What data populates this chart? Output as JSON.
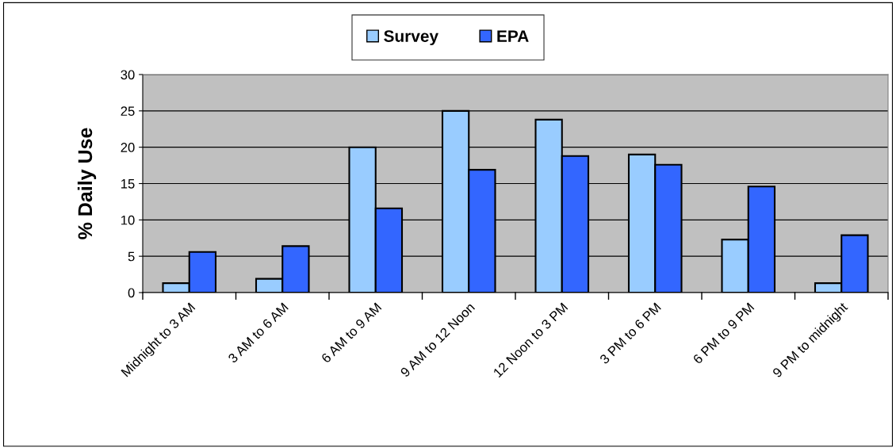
{
  "chart_data": {
    "type": "bar",
    "ylabel": "% Daily Use",
    "categories": [
      "Midnight to 3 AM",
      "3 AM to 6 AM",
      "6 AM to 9 AM",
      "9 AM to 12 Noon",
      "12 Noon to 3 PM",
      "3 PM to 6 PM",
      "6 PM to 9 PM",
      "9 PM to midnight"
    ],
    "series": [
      {
        "name": "Survey",
        "color": "#99ccff",
        "values": [
          1.3,
          1.9,
          20,
          25,
          23.8,
          19.0,
          7.3,
          1.3
        ]
      },
      {
        "name": "EPA",
        "color": "#3366ff",
        "values": [
          5.6,
          6.4,
          11.6,
          16.9,
          18.8,
          17.6,
          14.6,
          7.9
        ]
      }
    ],
    "ylim": [
      0,
      30
    ],
    "yticks": [
      0,
      5,
      10,
      15,
      20,
      25,
      30
    ],
    "grid": "y",
    "legend": "top"
  }
}
